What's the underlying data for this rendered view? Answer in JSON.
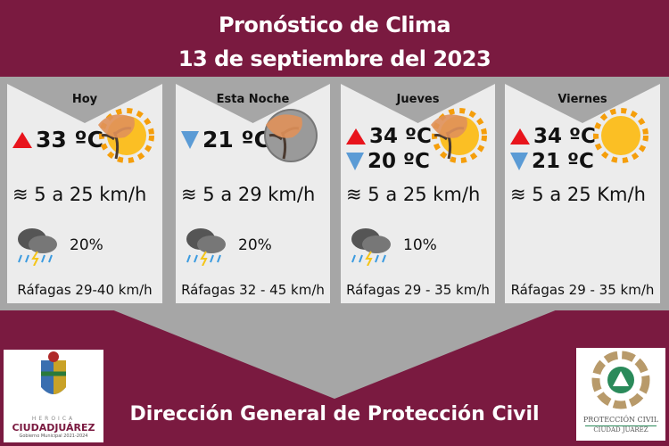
{
  "header": {
    "title": "Pronóstico de Clima",
    "date": "13 de septiembre del 2023"
  },
  "cards": [
    {
      "day": "Hoy",
      "temps": [
        {
          "dir": "up",
          "value": "33 ºC"
        }
      ],
      "icon": "windy-sun-icon",
      "wind": "5 a 25 km/h",
      "rain": "20%",
      "gusts": "Ráfagas 29-40 km/h"
    },
    {
      "day": "Esta Noche",
      "temps": [
        {
          "dir": "down",
          "value": "21 ºC"
        }
      ],
      "icon": "windy-moon-icon",
      "wind": "5 a 29 km/h",
      "rain": "20%",
      "gusts": "Ráfagas 32 - 45 km/h"
    },
    {
      "day": "Jueves",
      "temps": [
        {
          "dir": "up",
          "value": "34 ºC"
        },
        {
          "dir": "down",
          "value": "20 ºC"
        }
      ],
      "icon": "windy-sun-icon",
      "wind": "5 a 25 km/h",
      "rain": "10%",
      "gusts": "Ráfagas 29 - 35 km/h"
    },
    {
      "day": "Viernes",
      "temps": [
        {
          "dir": "up",
          "value": "34 ºC"
        },
        {
          "dir": "down",
          "value": "21 ºC"
        }
      ],
      "icon": "sun-icon",
      "wind": "5 a 25 Km/h",
      "rain": "",
      "gusts": "Ráfagas 29 - 35 km/h"
    }
  ],
  "footer": {
    "title": "Dirección General de Protección Civil"
  },
  "logos": {
    "left": {
      "top": "HEROICA",
      "name": "CIUDADJUÁREZ",
      "sub": "Gobierno Municipal 2021-2024"
    },
    "right": {
      "name": "PROTECCIÓN CIVIL",
      "sub": "CIUDAD JUÁREZ"
    }
  },
  "colors": {
    "background": "#7a1a40",
    "band": "#a6a6a6",
    "card": "#ececec",
    "up": "#e8141c",
    "down": "#5b9bd5"
  }
}
